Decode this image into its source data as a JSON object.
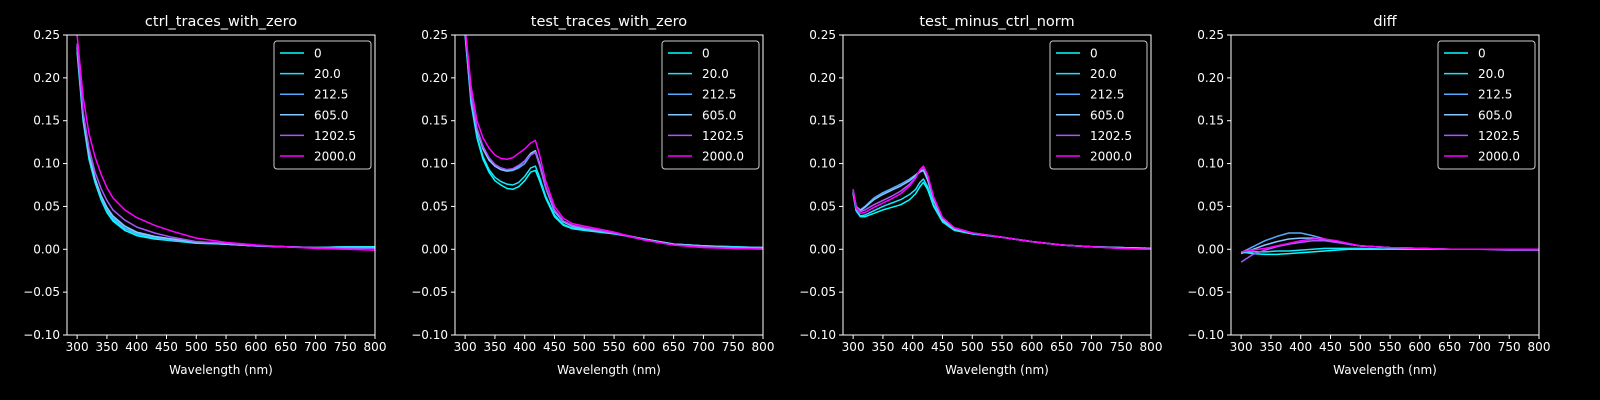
{
  "figure": {
    "background": "#000000",
    "foreground": "#ffffff"
  },
  "legend": {
    "labels": [
      "0",
      "20.0",
      "212.5",
      "605.0",
      "1202.5",
      "2000.0"
    ],
    "colors": [
      "#00ffff",
      "#1ae5ff",
      "#55aaff",
      "#80c8ff",
      "#aa55ff",
      "#ff00ff"
    ]
  },
  "chart_data": [
    {
      "type": "line",
      "title": "ctrl_traces_with_zero",
      "xlabel": "Wavelength (nm)",
      "ylabel": "",
      "xlim": [
        283,
        800
      ],
      "ylim": [
        -0.1,
        0.25
      ],
      "xticks": [
        300,
        350,
        400,
        450,
        500,
        550,
        600,
        650,
        700,
        750,
        800
      ],
      "xtick_labels": [
        "300",
        "350",
        "400",
        "450",
        "500",
        "550",
        "600",
        "650",
        "700",
        "750",
        "800"
      ],
      "yticks": [
        -0.1,
        -0.05,
        0.0,
        0.05,
        0.1,
        0.15,
        0.2,
        0.25
      ],
      "ytick_labels": [
        "−0.10",
        "−0.05",
        "0.00",
        "0.05",
        "0.10",
        "0.15",
        "0.20",
        "0.25"
      ],
      "legend_position": "top-right",
      "x": [
        300,
        310,
        320,
        330,
        340,
        350,
        360,
        380,
        400,
        430,
        460,
        500,
        550,
        600,
        650,
        700,
        750,
        800
      ],
      "series": [
        {
          "name": "0",
          "values": [
            0.23,
            0.15,
            0.105,
            0.078,
            0.058,
            0.043,
            0.033,
            0.022,
            0.016,
            0.012,
            0.01,
            0.007,
            0.006,
            0.004,
            0.003,
            0.002,
            0.003,
            0.003
          ]
        },
        {
          "name": "20.0",
          "values": [
            0.235,
            0.153,
            0.108,
            0.08,
            0.06,
            0.045,
            0.035,
            0.024,
            0.018,
            0.013,
            0.01,
            0.008,
            0.006,
            0.004,
            0.003,
            0.002,
            0.003,
            0.002
          ]
        },
        {
          "name": "212.5",
          "values": [
            0.238,
            0.155,
            0.11,
            0.083,
            0.062,
            0.047,
            0.037,
            0.025,
            0.019,
            0.014,
            0.011,
            0.008,
            0.006,
            0.004,
            0.003,
            0.002,
            0.002,
            0.002
          ]
        },
        {
          "name": "605.0",
          "values": [
            0.236,
            0.154,
            0.11,
            0.082,
            0.063,
            0.049,
            0.039,
            0.027,
            0.02,
            0.015,
            0.012,
            0.008,
            0.006,
            0.004,
            0.003,
            0.002,
            0.002,
            0.002
          ]
        },
        {
          "name": "1202.5",
          "values": [
            0.24,
            0.16,
            0.118,
            0.09,
            0.071,
            0.057,
            0.046,
            0.034,
            0.026,
            0.019,
            0.014,
            0.009,
            0.007,
            0.004,
            0.003,
            0.002,
            0.001,
            0.001
          ]
        },
        {
          "name": "2000.0",
          "values": [
            0.25,
            0.178,
            0.135,
            0.108,
            0.088,
            0.072,
            0.06,
            0.046,
            0.037,
            0.028,
            0.021,
            0.013,
            0.008,
            0.005,
            0.003,
            0.001,
            0.0,
            -0.001
          ]
        }
      ]
    },
    {
      "type": "line",
      "title": "test_traces_with_zero",
      "xlabel": "Wavelength (nm)",
      "ylabel": "",
      "xlim": [
        283,
        800
      ],
      "ylim": [
        -0.1,
        0.25
      ],
      "xticks": [
        300,
        350,
        400,
        450,
        500,
        550,
        600,
        650,
        700,
        750,
        800
      ],
      "xtick_labels": [
        "300",
        "350",
        "400",
        "450",
        "500",
        "550",
        "600",
        "650",
        "700",
        "750",
        "800"
      ],
      "yticks": [
        -0.1,
        -0.05,
        0.0,
        0.05,
        0.1,
        0.15,
        0.2,
        0.25
      ],
      "ytick_labels": [
        "−0.10",
        "−0.05",
        "0.00",
        "0.05",
        "0.10",
        "0.15",
        "0.20",
        "0.25"
      ],
      "legend_position": "top-right",
      "x": [
        300,
        310,
        320,
        330,
        340,
        350,
        360,
        370,
        380,
        390,
        400,
        410,
        418,
        425,
        435,
        450,
        465,
        480,
        500,
        550,
        600,
        650,
        700,
        750,
        800
      ],
      "series": [
        {
          "name": "0",
          "values": [
            0.25,
            0.17,
            0.13,
            0.105,
            0.09,
            0.08,
            0.075,
            0.071,
            0.07,
            0.073,
            0.08,
            0.09,
            0.092,
            0.08,
            0.06,
            0.038,
            0.028,
            0.024,
            0.022,
            0.018,
            0.012,
            0.006,
            0.004,
            0.003,
            0.002
          ]
        },
        {
          "name": "20.0",
          "values": [
            0.252,
            0.172,
            0.132,
            0.108,
            0.093,
            0.084,
            0.079,
            0.076,
            0.075,
            0.078,
            0.085,
            0.095,
            0.097,
            0.084,
            0.062,
            0.04,
            0.029,
            0.025,
            0.023,
            0.019,
            0.012,
            0.006,
            0.004,
            0.003,
            0.002
          ]
        },
        {
          "name": "212.5",
          "values": [
            0.255,
            0.178,
            0.14,
            0.118,
            0.105,
            0.097,
            0.093,
            0.091,
            0.092,
            0.095,
            0.1,
            0.11,
            0.113,
            0.098,
            0.072,
            0.044,
            0.032,
            0.027,
            0.024,
            0.019,
            0.012,
            0.006,
            0.004,
            0.002,
            0.002
          ]
        },
        {
          "name": "605.0",
          "values": [
            0.253,
            0.176,
            0.138,
            0.117,
            0.104,
            0.097,
            0.093,
            0.092,
            0.093,
            0.097,
            0.103,
            0.112,
            0.115,
            0.1,
            0.073,
            0.045,
            0.032,
            0.027,
            0.024,
            0.019,
            0.012,
            0.006,
            0.004,
            0.002,
            0.002
          ]
        },
        {
          "name": "1202.5",
          "values": [
            0.258,
            0.18,
            0.141,
            0.12,
            0.107,
            0.099,
            0.095,
            0.093,
            0.094,
            0.098,
            0.103,
            0.11,
            0.113,
            0.098,
            0.073,
            0.046,
            0.033,
            0.028,
            0.025,
            0.019,
            0.011,
            0.005,
            0.003,
            0.001,
            0.001
          ]
        },
        {
          "name": "2000.0",
          "values": [
            0.26,
            0.19,
            0.15,
            0.13,
            0.118,
            0.11,
            0.106,
            0.105,
            0.107,
            0.112,
            0.117,
            0.124,
            0.127,
            0.11,
            0.08,
            0.05,
            0.036,
            0.03,
            0.027,
            0.02,
            0.011,
            0.005,
            0.002,
            0.001,
            0.0
          ]
        }
      ]
    },
    {
      "type": "line",
      "title": "test_minus_ctrl_norm",
      "xlabel": "Wavelength (nm)",
      "ylabel": "",
      "xlim": [
        283,
        800
      ],
      "ylim": [
        -0.1,
        0.25
      ],
      "xticks": [
        300,
        350,
        400,
        450,
        500,
        550,
        600,
        650,
        700,
        750,
        800
      ],
      "xtick_labels": [
        "300",
        "350",
        "400",
        "450",
        "500",
        "550",
        "600",
        "650",
        "700",
        "750",
        "800"
      ],
      "yticks": [
        -0.1,
        -0.05,
        0.0,
        0.05,
        0.1,
        0.15,
        0.2,
        0.25
      ],
      "ytick_labels": [
        "−0.10",
        "−0.05",
        "0.00",
        "0.05",
        "0.10",
        "0.15",
        "0.20",
        "0.25"
      ],
      "legend_position": "top-right",
      "x": [
        300,
        305,
        312,
        320,
        335,
        350,
        365,
        380,
        395,
        405,
        412,
        418,
        425,
        435,
        450,
        470,
        500,
        550,
        600,
        650,
        700,
        750,
        800
      ],
      "series": [
        {
          "name": "0",
          "values": [
            0.065,
            0.045,
            0.038,
            0.038,
            0.042,
            0.046,
            0.049,
            0.052,
            0.058,
            0.065,
            0.073,
            0.078,
            0.07,
            0.05,
            0.032,
            0.022,
            0.018,
            0.014,
            0.009,
            0.005,
            0.003,
            0.002,
            0.001
          ]
        },
        {
          "name": "20.0",
          "values": [
            0.066,
            0.046,
            0.039,
            0.04,
            0.045,
            0.05,
            0.054,
            0.058,
            0.064,
            0.07,
            0.078,
            0.082,
            0.073,
            0.052,
            0.033,
            0.023,
            0.018,
            0.014,
            0.009,
            0.005,
            0.003,
            0.002,
            0.001
          ]
        },
        {
          "name": "212.5",
          "values": [
            0.068,
            0.05,
            0.046,
            0.05,
            0.06,
            0.066,
            0.071,
            0.076,
            0.082,
            0.087,
            0.091,
            0.093,
            0.082,
            0.058,
            0.036,
            0.025,
            0.019,
            0.014,
            0.009,
            0.005,
            0.003,
            0.002,
            0.001
          ]
        },
        {
          "name": "605.0",
          "values": [
            0.067,
            0.05,
            0.045,
            0.049,
            0.058,
            0.064,
            0.069,
            0.074,
            0.08,
            0.086,
            0.09,
            0.092,
            0.081,
            0.057,
            0.035,
            0.024,
            0.019,
            0.014,
            0.009,
            0.005,
            0.003,
            0.002,
            0.001
          ]
        },
        {
          "name": "1202.5",
          "values": [
            0.07,
            0.05,
            0.044,
            0.046,
            0.052,
            0.057,
            0.062,
            0.068,
            0.076,
            0.084,
            0.092,
            0.096,
            0.086,
            0.06,
            0.037,
            0.025,
            0.019,
            0.014,
            0.009,
            0.005,
            0.003,
            0.001,
            0.0
          ]
        },
        {
          "name": "2000.0",
          "values": [
            0.069,
            0.048,
            0.042,
            0.043,
            0.049,
            0.054,
            0.059,
            0.065,
            0.074,
            0.083,
            0.093,
            0.097,
            0.087,
            0.061,
            0.037,
            0.025,
            0.019,
            0.014,
            0.009,
            0.005,
            0.003,
            0.001,
            0.0
          ]
        }
      ]
    },
    {
      "type": "line",
      "title": "diff",
      "xlabel": "Wavelength (nm)",
      "ylabel": "",
      "xlim": [
        283,
        800
      ],
      "ylim": [
        -0.1,
        0.25
      ],
      "xticks": [
        300,
        350,
        400,
        450,
        500,
        550,
        600,
        650,
        700,
        750,
        800
      ],
      "xtick_labels": [
        "300",
        "350",
        "400",
        "450",
        "500",
        "550",
        "600",
        "650",
        "700",
        "750",
        "800"
      ],
      "yticks": [
        -0.1,
        -0.05,
        0.0,
        0.05,
        0.1,
        0.15,
        0.2,
        0.25
      ],
      "ytick_labels": [
        "−0.10",
        "−0.05",
        "0.00",
        "0.05",
        "0.10",
        "0.15",
        "0.20",
        "0.25"
      ],
      "legend_position": "top-right",
      "x": [
        300,
        320,
        340,
        360,
        380,
        400,
        420,
        440,
        460,
        480,
        500,
        550,
        600,
        650,
        700,
        750,
        800
      ],
      "series": [
        {
          "name": "0",
          "values": [
            -0.003,
            -0.005,
            -0.006,
            -0.006,
            -0.005,
            -0.004,
            -0.003,
            -0.002,
            -0.001,
            0.0,
            0.0,
            0.0,
            0.0,
            0.0,
            0.0,
            0.0,
            0.0
          ]
        },
        {
          "name": "20.0",
          "values": [
            -0.004,
            -0.003,
            -0.003,
            -0.002,
            -0.002,
            -0.001,
            0.0,
            0.001,
            0.001,
            0.001,
            0.001,
            0.0,
            0.0,
            0.0,
            0.0,
            0.0,
            0.0
          ]
        },
        {
          "name": "212.5",
          "values": [
            -0.004,
            0.003,
            0.01,
            0.015,
            0.019,
            0.019,
            0.016,
            0.012,
            0.009,
            0.006,
            0.004,
            0.002,
            0.001,
            0.0,
            0.0,
            0.0,
            0.0
          ]
        },
        {
          "name": "605.0",
          "values": [
            -0.005,
            0.0,
            0.005,
            0.009,
            0.012,
            0.013,
            0.013,
            0.011,
            0.009,
            0.006,
            0.004,
            0.002,
            0.001,
            0.0,
            0.0,
            0.0,
            0.0
          ]
        },
        {
          "name": "1202.5",
          "values": [
            -0.015,
            -0.006,
            -0.001,
            0.003,
            0.006,
            0.008,
            0.01,
            0.01,
            0.008,
            0.006,
            0.004,
            0.002,
            0.001,
            0.0,
            0.0,
            -0.001,
            -0.001
          ]
        },
        {
          "name": "2000.0",
          "values": [
            -0.003,
            -0.001,
            0.001,
            0.004,
            0.007,
            0.01,
            0.012,
            0.012,
            0.01,
            0.007,
            0.004,
            0.002,
            0.001,
            0.0,
            0.0,
            0.0,
            0.0
          ]
        }
      ]
    }
  ]
}
